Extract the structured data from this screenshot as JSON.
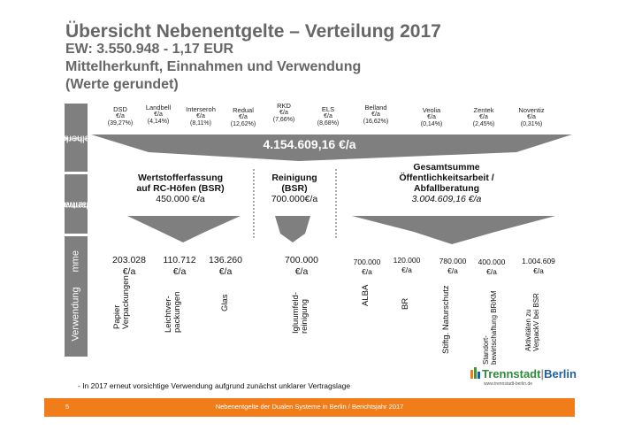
{
  "title": {
    "line1": "Übersicht Nebenentgelte –  Verteilung 2017",
    "line2": "EW: 3.550.948 - 1,17 EUR",
    "line3": "Mittelherkunft, Einnahmen und Verwendung",
    "line4": "(Werte gerundet)"
  },
  "side_labels": {
    "row1": "Mittelherkunft",
    "row1_sub": "(Kostenbeteiligung)",
    "row2a": "Thema /",
    "row2b": "Verantwort.",
    "row3": "Summe",
    "row4": "Verwendung"
  },
  "companies": [
    {
      "name": "DSD",
      "unit": "€/a",
      "share": "(39,27%)"
    },
    {
      "name": "Landbell",
      "unit": "€/a",
      "share": "(4,14%)"
    },
    {
      "name": "Interseroh",
      "unit": "€/a",
      "share": "(8,11%)"
    },
    {
      "name": "Redual",
      "unit": "€/a",
      "share": "(12,62%)"
    },
    {
      "name": "RKD",
      "unit": "€/a",
      "share": "(7,66%)"
    },
    {
      "name": "ELS",
      "unit": "€/a",
      "share": "(8,68%)"
    },
    {
      "name": "Belland",
      "unit": "€/a",
      "share": "(16,62%)"
    },
    {
      "name": "Veolia",
      "unit": "€/a",
      "share": "(0,14%)"
    },
    {
      "name": "Zentek",
      "unit": "€/a",
      "share": "(2,45%)"
    },
    {
      "name": "Noventiz",
      "unit": "€/a",
      "share": "(0,31%)"
    }
  ],
  "total": "4.154.609,16 €/a",
  "themes": [
    {
      "line1": "Wertstofferfassung",
      "line2": "auf RC-Höfen (BSR)",
      "amount": "450.000 €/a"
    },
    {
      "line1": "Reinigung",
      "line2": "(BSR)",
      "amount": "700.000€/a"
    },
    {
      "line1": "Gesamtsumme",
      "line2": "Öffentlichkeitsarbeit /",
      "line3": "Abfallberatung",
      "amount": "3.004.609,16 €/a"
    }
  ],
  "sums": [
    {
      "value": "203.028",
      "unit": "€/a"
    },
    {
      "value": "110.712",
      "unit": "€/a"
    },
    {
      "value": "136.260",
      "unit": "€/a"
    },
    {
      "value": "700.000",
      "unit": "€/a"
    },
    {
      "value": "700.000",
      "unit": "€/a"
    },
    {
      "value": "120.000",
      "unit": "€/a"
    },
    {
      "value": "780.000",
      "unit": "€/a"
    },
    {
      "value": "400.000",
      "unit": "€/a"
    },
    {
      "value": "1.004.609",
      "unit": "€/a"
    }
  ],
  "uses": [
    {
      "line1": "Papier",
      "line2": "Verpackungen"
    },
    {
      "line1": "Leichtver-",
      "line2": "packungen"
    },
    {
      "line1": "Glas"
    },
    {
      "line1": "Igluumfeld-",
      "line2": "reinigung"
    },
    {
      "line1": "ALBA"
    },
    {
      "line1": "BR"
    },
    {
      "line1": "Stiftg. Naturschutz"
    },
    {
      "line1": "Standort-",
      "line2": "bewirtschaftung BR/KM"
    },
    {
      "line1": "Aktivitäten zu",
      "line2": "VerpackV bei BSR"
    }
  ],
  "note": "- In 2017 erneut vorsichtige Verwendung aufgrund zunächst unklarer Vertragslage",
  "logo": {
    "word1": "Trennstadt",
    "word2": "Berlin",
    "url": "www.trennstadt-berlin.de"
  },
  "footer": {
    "page": "5",
    "text": "Nebenentgelte der  Dualen Systeme in Berlin / Berichtsjahr 2017"
  },
  "colors": {
    "arrow": "#7f7f7f",
    "side": "#7f7f7f",
    "footer": "#f07d1a",
    "title": "#666666"
  }
}
